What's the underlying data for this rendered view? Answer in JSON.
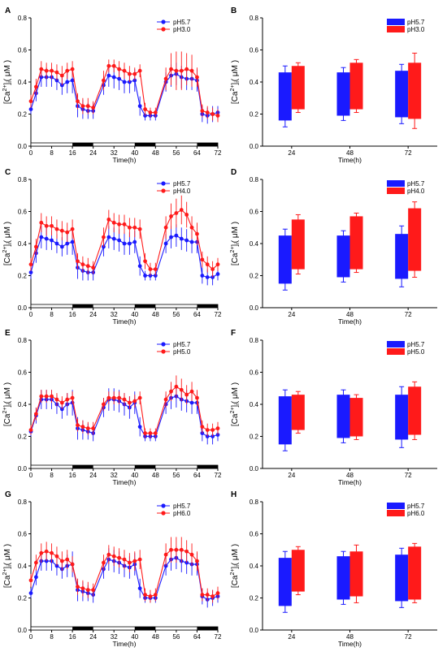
{
  "figure": {
    "legend_pairs": [
      [
        "pH5.7",
        "pH3.0"
      ],
      [
        "pH5.7",
        "pH4.0"
      ],
      [
        "pH5.7",
        "pH5.0"
      ],
      [
        "pH5.7",
        "pH6.0"
      ]
    ],
    "colors": {
      "control": "#1a1aff",
      "treatment": "#ff1a1a"
    },
    "dark_periods_h": [
      [
        16,
        24
      ],
      [
        40,
        48
      ],
      [
        64,
        72
      ]
    ]
  },
  "chart_data": [
    {
      "panel": "A",
      "type": "line",
      "xlabel": "Time(h)",
      "ylabel": "[Ca2+]i (μM)",
      "xlim": [
        0,
        72
      ],
      "ylim": [
        0,
        0.8
      ],
      "xticks": [
        0,
        8,
        16,
        24,
        32,
        40,
        48,
        56,
        64,
        72
      ],
      "yticks": [
        0.0,
        0.2,
        0.4,
        0.6,
        0.8
      ],
      "x": [
        0,
        2,
        4,
        6,
        8,
        10,
        12,
        14,
        16,
        18,
        20,
        22,
        24,
        28,
        30,
        32,
        34,
        36,
        38,
        40,
        42,
        44,
        46,
        48,
        52,
        54,
        56,
        58,
        60,
        62,
        64,
        66,
        68,
        70,
        72
      ],
      "series": [
        {
          "name": "pH5.7",
          "color": "#1a1aff",
          "y": [
            0.23,
            0.33,
            0.43,
            0.43,
            0.43,
            0.41,
            0.38,
            0.4,
            0.41,
            0.25,
            0.23,
            0.22,
            0.22,
            0.38,
            0.44,
            0.43,
            0.42,
            0.4,
            0.4,
            0.41,
            0.25,
            0.19,
            0.19,
            0.19,
            0.4,
            0.44,
            0.45,
            0.43,
            0.42,
            0.42,
            0.41,
            0.2,
            0.19,
            0.2,
            0.21
          ],
          "err": [
            0.03,
            0.05,
            0.06,
            0.06,
            0.06,
            0.06,
            0.06,
            0.07,
            0.08,
            0.07,
            0.06,
            0.05,
            0.05,
            0.06,
            0.07,
            0.07,
            0.07,
            0.07,
            0.07,
            0.07,
            0.06,
            0.03,
            0.03,
            0.03,
            0.06,
            0.07,
            0.07,
            0.07,
            0.07,
            0.07,
            0.07,
            0.05,
            0.05,
            0.05,
            0.04
          ]
        },
        {
          "name": "pH3.0",
          "color": "#ff1a1a",
          "y": [
            0.28,
            0.37,
            0.48,
            0.47,
            0.47,
            0.46,
            0.44,
            0.47,
            0.48,
            0.28,
            0.25,
            0.25,
            0.24,
            0.41,
            0.5,
            0.5,
            0.48,
            0.47,
            0.45,
            0.45,
            0.47,
            0.23,
            0.21,
            0.21,
            0.42,
            0.48,
            0.47,
            0.47,
            0.48,
            0.47,
            0.43,
            0.22,
            0.21,
            0.2,
            0.19
          ],
          "err": [
            0.04,
            0.05,
            0.05,
            0.05,
            0.05,
            0.05,
            0.06,
            0.05,
            0.05,
            0.05,
            0.05,
            0.05,
            0.04,
            0.06,
            0.04,
            0.04,
            0.05,
            0.05,
            0.05,
            0.04,
            0.04,
            0.04,
            0.03,
            0.03,
            0.07,
            0.1,
            0.12,
            0.12,
            0.1,
            0.1,
            0.06,
            0.04,
            0.04,
            0.04,
            0.04
          ]
        }
      ]
    },
    {
      "panel": "B",
      "type": "bar",
      "xlabel": "Time(h)",
      "ylabel": "[Ca2+]i (μM)",
      "ylim": [
        0,
        0.8
      ],
      "yticks": [
        0.0,
        0.2,
        0.4,
        0.6,
        0.8
      ],
      "categories": [
        "24",
        "48",
        "72"
      ],
      "series": [
        {
          "name": "pH5.7",
          "color": "#1a1aff",
          "low": [
            0.16,
            0.19,
            0.18
          ],
          "high": [
            0.46,
            0.46,
            0.47
          ],
          "err": [
            0.04,
            0.03,
            0.04
          ]
        },
        {
          "name": "pH3.0",
          "color": "#ff1a1a",
          "low": [
            0.23,
            0.23,
            0.17
          ],
          "high": [
            0.5,
            0.52,
            0.52
          ],
          "err": [
            0.02,
            0.02,
            0.06
          ]
        }
      ]
    },
    {
      "panel": "C",
      "type": "line",
      "xlabel": "Time(h)",
      "ylabel": "[Ca2+]i (μM)",
      "xlim": [
        0,
        72
      ],
      "ylim": [
        0,
        0.8
      ],
      "xticks": [
        0,
        8,
        16,
        24,
        32,
        40,
        48,
        56,
        64,
        72
      ],
      "yticks": [
        0.0,
        0.2,
        0.4,
        0.6,
        0.8
      ],
      "x": [
        0,
        2,
        4,
        6,
        8,
        10,
        12,
        14,
        16,
        18,
        20,
        22,
        24,
        28,
        30,
        32,
        34,
        36,
        38,
        40,
        42,
        44,
        46,
        48,
        52,
        54,
        56,
        58,
        60,
        62,
        64,
        66,
        68,
        70,
        72
      ],
      "series": [
        {
          "name": "pH5.7",
          "color": "#1a1aff",
          "y": [
            0.22,
            0.34,
            0.44,
            0.43,
            0.42,
            0.4,
            0.38,
            0.4,
            0.41,
            0.25,
            0.23,
            0.22,
            0.22,
            0.38,
            0.44,
            0.43,
            0.42,
            0.4,
            0.4,
            0.41,
            0.26,
            0.2,
            0.2,
            0.2,
            0.4,
            0.44,
            0.45,
            0.43,
            0.42,
            0.41,
            0.41,
            0.2,
            0.19,
            0.19,
            0.21
          ],
          "err": [
            0.04,
            0.06,
            0.07,
            0.07,
            0.06,
            0.06,
            0.06,
            0.07,
            0.08,
            0.07,
            0.06,
            0.05,
            0.05,
            0.06,
            0.07,
            0.07,
            0.07,
            0.07,
            0.07,
            0.07,
            0.06,
            0.03,
            0.03,
            0.03,
            0.06,
            0.07,
            0.07,
            0.07,
            0.07,
            0.07,
            0.07,
            0.05,
            0.05,
            0.05,
            0.04
          ]
        },
        {
          "name": "pH4.0",
          "color": "#ff1a1a",
          "y": [
            0.27,
            0.38,
            0.53,
            0.51,
            0.51,
            0.49,
            0.48,
            0.47,
            0.49,
            0.29,
            0.27,
            0.26,
            0.25,
            0.44,
            0.55,
            0.53,
            0.52,
            0.52,
            0.5,
            0.5,
            0.49,
            0.29,
            0.24,
            0.24,
            0.5,
            0.57,
            0.59,
            0.61,
            0.58,
            0.5,
            0.46,
            0.3,
            0.27,
            0.24,
            0.27
          ],
          "err": [
            0.04,
            0.05,
            0.06,
            0.06,
            0.06,
            0.06,
            0.06,
            0.06,
            0.06,
            0.05,
            0.05,
            0.05,
            0.04,
            0.06,
            0.06,
            0.06,
            0.06,
            0.06,
            0.06,
            0.06,
            0.06,
            0.05,
            0.04,
            0.04,
            0.07,
            0.08,
            0.09,
            0.09,
            0.08,
            0.07,
            0.07,
            0.05,
            0.05,
            0.05,
            0.04
          ]
        }
      ]
    },
    {
      "panel": "D",
      "type": "bar",
      "xlabel": "Time(h)",
      "ylabel": "[Ca2+]i (μM)",
      "ylim": [
        0,
        0.8
      ],
      "yticks": [
        0.0,
        0.2,
        0.4,
        0.6,
        0.8
      ],
      "categories": [
        "24",
        "48",
        "72"
      ],
      "series": [
        {
          "name": "pH5.7",
          "color": "#1a1aff",
          "low": [
            0.15,
            0.19,
            0.18
          ],
          "high": [
            0.45,
            0.45,
            0.46
          ],
          "err": [
            0.04,
            0.03,
            0.05
          ]
        },
        {
          "name": "pH4.0",
          "color": "#ff1a1a",
          "low": [
            0.24,
            0.24,
            0.23
          ],
          "high": [
            0.55,
            0.57,
            0.62
          ],
          "err": [
            0.03,
            0.02,
            0.04
          ]
        }
      ]
    },
    {
      "panel": "E",
      "type": "line",
      "xlabel": "Time(h)",
      "ylabel": "[Ca2+]i (μM)",
      "xlim": [
        0,
        72
      ],
      "ylim": [
        0,
        0.8
      ],
      "xticks": [
        0,
        8,
        16,
        24,
        32,
        40,
        48,
        56,
        64,
        72
      ],
      "yticks": [
        0.0,
        0.2,
        0.4,
        0.6,
        0.8
      ],
      "x": [
        0,
        2,
        4,
        6,
        8,
        10,
        12,
        14,
        16,
        18,
        20,
        22,
        24,
        28,
        30,
        32,
        34,
        36,
        38,
        40,
        42,
        44,
        46,
        48,
        52,
        54,
        56,
        58,
        60,
        62,
        64,
        66,
        68,
        70,
        72
      ],
      "series": [
        {
          "name": "pH5.7",
          "color": "#1a1aff",
          "y": [
            0.23,
            0.33,
            0.43,
            0.43,
            0.43,
            0.4,
            0.37,
            0.4,
            0.41,
            0.25,
            0.24,
            0.23,
            0.22,
            0.38,
            0.43,
            0.43,
            0.42,
            0.4,
            0.38,
            0.41,
            0.26,
            0.2,
            0.2,
            0.2,
            0.4,
            0.44,
            0.45,
            0.43,
            0.42,
            0.41,
            0.41,
            0.22,
            0.2,
            0.2,
            0.21
          ],
          "err": [
            0.03,
            0.05,
            0.06,
            0.06,
            0.06,
            0.06,
            0.06,
            0.07,
            0.08,
            0.07,
            0.06,
            0.05,
            0.05,
            0.06,
            0.07,
            0.07,
            0.07,
            0.07,
            0.07,
            0.07,
            0.06,
            0.03,
            0.03,
            0.03,
            0.06,
            0.07,
            0.07,
            0.07,
            0.07,
            0.07,
            0.07,
            0.05,
            0.05,
            0.05,
            0.04
          ]
        },
        {
          "name": "pH5.0",
          "color": "#ff1a1a",
          "y": [
            0.24,
            0.34,
            0.45,
            0.45,
            0.45,
            0.43,
            0.41,
            0.43,
            0.44,
            0.27,
            0.26,
            0.25,
            0.25,
            0.4,
            0.44,
            0.44,
            0.44,
            0.43,
            0.41,
            0.42,
            0.44,
            0.22,
            0.22,
            0.22,
            0.43,
            0.48,
            0.51,
            0.49,
            0.46,
            0.48,
            0.44,
            0.26,
            0.24,
            0.24,
            0.25
          ],
          "err": [
            0.03,
            0.04,
            0.04,
            0.04,
            0.04,
            0.04,
            0.04,
            0.04,
            0.04,
            0.04,
            0.04,
            0.04,
            0.04,
            0.04,
            0.04,
            0.04,
            0.04,
            0.04,
            0.04,
            0.04,
            0.04,
            0.03,
            0.03,
            0.03,
            0.05,
            0.06,
            0.07,
            0.07,
            0.06,
            0.06,
            0.05,
            0.04,
            0.04,
            0.04,
            0.04
          ]
        }
      ]
    },
    {
      "panel": "F",
      "type": "bar",
      "xlabel": "Time(h)",
      "ylabel": "[Ca2+]i (μM)",
      "ylim": [
        0,
        0.8
      ],
      "yticks": [
        0.0,
        0.2,
        0.4,
        0.6,
        0.8
      ],
      "categories": [
        "24",
        "48",
        "72"
      ],
      "series": [
        {
          "name": "pH5.7",
          "color": "#1a1aff",
          "low": [
            0.15,
            0.19,
            0.18
          ],
          "high": [
            0.45,
            0.46,
            0.46
          ],
          "err": [
            0.04,
            0.03,
            0.05
          ]
        },
        {
          "name": "pH5.0",
          "color": "#ff1a1a",
          "low": [
            0.24,
            0.2,
            0.21
          ],
          "high": [
            0.46,
            0.44,
            0.51
          ],
          "err": [
            0.02,
            0.02,
            0.03
          ]
        }
      ]
    },
    {
      "panel": "G",
      "type": "line",
      "xlabel": "Time(h)",
      "ylabel": "[Ca2+]i (μM)",
      "xlim": [
        0,
        72
      ],
      "ylim": [
        0,
        0.8
      ],
      "xticks": [
        0,
        8,
        16,
        24,
        32,
        40,
        48,
        56,
        64,
        72
      ],
      "yticks": [
        0.0,
        0.2,
        0.4,
        0.6,
        0.8
      ],
      "x": [
        0,
        2,
        4,
        6,
        8,
        10,
        12,
        14,
        16,
        18,
        20,
        22,
        24,
        28,
        30,
        32,
        34,
        36,
        38,
        40,
        42,
        44,
        46,
        48,
        52,
        54,
        56,
        58,
        60,
        62,
        64,
        66,
        68,
        70,
        72
      ],
      "series": [
        {
          "name": "pH5.7",
          "color": "#1a1aff",
          "y": [
            0.23,
            0.33,
            0.43,
            0.43,
            0.43,
            0.4,
            0.38,
            0.4,
            0.41,
            0.25,
            0.24,
            0.23,
            0.22,
            0.38,
            0.44,
            0.43,
            0.42,
            0.4,
            0.39,
            0.41,
            0.26,
            0.2,
            0.2,
            0.2,
            0.4,
            0.44,
            0.45,
            0.43,
            0.42,
            0.41,
            0.41,
            0.21,
            0.19,
            0.2,
            0.21
          ],
          "err": [
            0.03,
            0.05,
            0.06,
            0.06,
            0.06,
            0.06,
            0.06,
            0.07,
            0.08,
            0.07,
            0.06,
            0.05,
            0.05,
            0.06,
            0.07,
            0.07,
            0.07,
            0.07,
            0.07,
            0.07,
            0.06,
            0.03,
            0.03,
            0.03,
            0.06,
            0.07,
            0.07,
            0.07,
            0.07,
            0.07,
            0.07,
            0.05,
            0.05,
            0.05,
            0.04
          ]
        },
        {
          "name": "pH6.0",
          "color": "#ff1a1a",
          "y": [
            0.31,
            0.42,
            0.48,
            0.49,
            0.48,
            0.46,
            0.43,
            0.44,
            0.41,
            0.27,
            0.26,
            0.25,
            0.25,
            0.42,
            0.47,
            0.46,
            0.45,
            0.44,
            0.42,
            0.43,
            0.44,
            0.22,
            0.21,
            0.22,
            0.47,
            0.5,
            0.5,
            0.5,
            0.49,
            0.47,
            0.43,
            0.22,
            0.22,
            0.21,
            0.23
          ],
          "err": [
            0.04,
            0.05,
            0.06,
            0.06,
            0.06,
            0.06,
            0.06,
            0.06,
            0.05,
            0.05,
            0.05,
            0.05,
            0.04,
            0.05,
            0.06,
            0.06,
            0.06,
            0.06,
            0.06,
            0.06,
            0.06,
            0.04,
            0.04,
            0.04,
            0.07,
            0.08,
            0.08,
            0.08,
            0.07,
            0.07,
            0.06,
            0.04,
            0.04,
            0.04,
            0.04
          ]
        }
      ]
    },
    {
      "panel": "H",
      "type": "bar",
      "xlabel": "Time(h)",
      "ylabel": "[Ca2+]i (μM)",
      "ylim": [
        0,
        0.8
      ],
      "yticks": [
        0.0,
        0.2,
        0.4,
        0.6,
        0.8
      ],
      "categories": [
        "24",
        "48",
        "72"
      ],
      "series": [
        {
          "name": "pH5.7",
          "color": "#1a1aff",
          "low": [
            0.15,
            0.19,
            0.18
          ],
          "high": [
            0.45,
            0.46,
            0.47
          ],
          "err": [
            0.04,
            0.03,
            0.04
          ]
        },
        {
          "name": "pH6.0",
          "color": "#ff1a1a",
          "low": [
            0.24,
            0.21,
            0.19
          ],
          "high": [
            0.5,
            0.49,
            0.52
          ],
          "err": [
            0.02,
            0.04,
            0.02
          ]
        }
      ]
    }
  ]
}
